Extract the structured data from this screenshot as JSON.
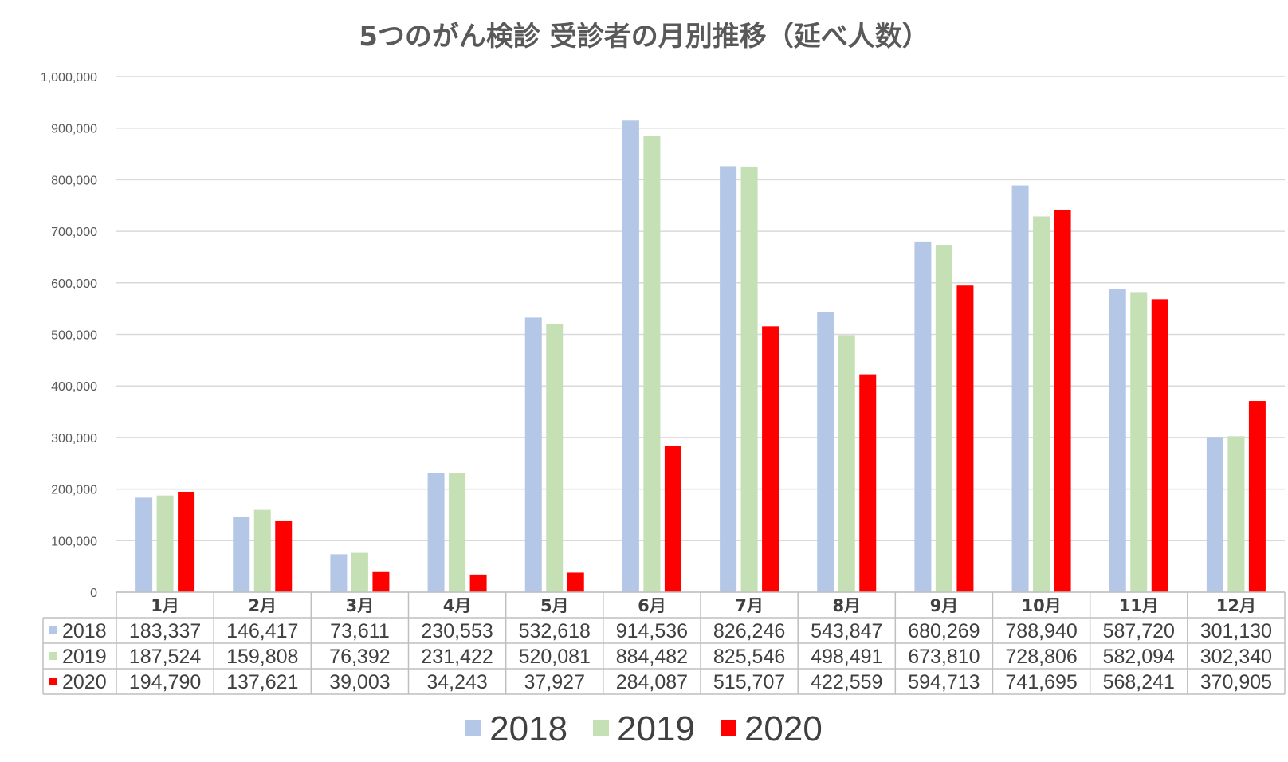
{
  "chart_data": {
    "type": "bar",
    "title": "5つのがん検診 受診者の月別推移（延べ人数）",
    "categories": [
      "1月",
      "2月",
      "3月",
      "4月",
      "5月",
      "6月",
      "7月",
      "8月",
      "9月",
      "10月",
      "11月",
      "12月"
    ],
    "series": [
      {
        "name": "2018",
        "color": "#b4c7e7",
        "values": [
          183337,
          146417,
          73611,
          230553,
          532618,
          914536,
          826246,
          543847,
          680269,
          788940,
          587720,
          301130
        ],
        "labels": [
          "183,337",
          "146,417",
          "73,611",
          "230,553",
          "532,618",
          "914,536",
          "826,246",
          "543,847",
          "680,269",
          "788,940",
          "587,720",
          "301,130"
        ]
      },
      {
        "name": "2019",
        "color": "#c5e0b4",
        "values": [
          187524,
          159808,
          76392,
          231422,
          520081,
          884482,
          825546,
          498491,
          673810,
          728806,
          582094,
          302340
        ],
        "labels": [
          "187,524",
          "159,808",
          "76,392",
          "231,422",
          "520,081",
          "884,482",
          "825,546",
          "498,491",
          "673,810",
          "728,806",
          "582,094",
          "302,340"
        ]
      },
      {
        "name": "2020",
        "color": "#ff0000",
        "values": [
          194790,
          137621,
          39003,
          34243,
          37927,
          284087,
          515707,
          422559,
          594713,
          741695,
          568241,
          370905
        ],
        "labels": [
          "194,790",
          "137,621",
          "39,003",
          "34,243",
          "37,927",
          "284,087",
          "515,707",
          "422,559",
          "594,713",
          "741,695",
          "568,241",
          "370,905"
        ]
      }
    ],
    "ylim": [
      0,
      1000000
    ],
    "yticks": [
      0,
      100000,
      200000,
      300000,
      400000,
      500000,
      600000,
      700000,
      800000,
      900000,
      1000000
    ],
    "ytick_labels": [
      "0",
      "100,000",
      "200,000",
      "300,000",
      "400,000",
      "500,000",
      "600,000",
      "700,000",
      "800,000",
      "900,000",
      "1,000,000"
    ],
    "grid": true,
    "legend_position": "bottom",
    "data_table": true
  }
}
